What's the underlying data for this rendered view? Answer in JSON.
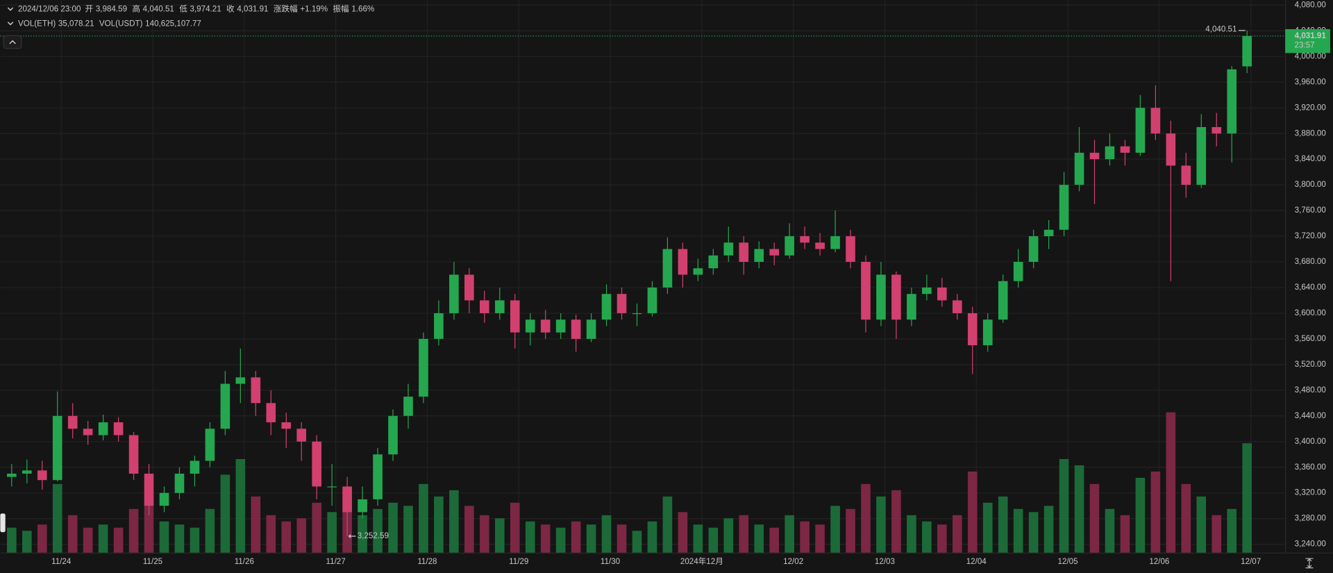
{
  "chart_data": {
    "type": "candlestick",
    "legend": {
      "time": "2024/12/06 23:00",
      "fields": [
        {
          "label": "开",
          "value": "3,984.59"
        },
        {
          "label": "高",
          "value": "4,040.51"
        },
        {
          "label": "低",
          "value": "3,974.21"
        },
        {
          "label": "收",
          "value": "4,031.91"
        },
        {
          "label": "涨跌幅",
          "value": "+1.19%"
        },
        {
          "label": "振幅",
          "value": "1.66%"
        }
      ],
      "volume": [
        {
          "label": "VOL(ETH)",
          "value": "35,078.21"
        },
        {
          "label": "VOL(USDT)",
          "value": "140,625,107.77"
        }
      ]
    },
    "up_color": "#25a750",
    "down_color": "#d2406f",
    "up_volume_color": "#1c6a38",
    "down_volume_color": "#7c2744",
    "grid": true,
    "last_price": {
      "value": 4031.91,
      "label": "4,031.91"
    },
    "countdown": "23:57",
    "annotations": {
      "high": "4,040.51",
      "low": "3,252.59"
    },
    "xlim": [
      "2024/11/23 08:00",
      "2024/12/07 09:00"
    ],
    "ylim": [
      3227,
      4088
    ],
    "xticks": [
      {
        "value": "2024/11/24 00:00",
        "label": "11/24"
      },
      {
        "value": "2024/11/25 00:00",
        "label": "11/25"
      },
      {
        "value": "2024/11/26 00:00",
        "label": "11/26"
      },
      {
        "value": "2024/11/27 00:00",
        "label": "11/27"
      },
      {
        "value": "2024/11/28 00:00",
        "label": "11/28"
      },
      {
        "value": "2024/11/29 00:00",
        "label": "11/29"
      },
      {
        "value": "2024/11/30 00:00",
        "label": "11/30"
      },
      {
        "value": "2024/12/01 00:00",
        "label": "2024年12月"
      },
      {
        "value": "2024/12/02 00:00",
        "label": "12/02"
      },
      {
        "value": "2024/12/03 00:00",
        "label": "12/03"
      },
      {
        "value": "2024/12/04 00:00",
        "label": "12/04"
      },
      {
        "value": "2024/12/05 00:00",
        "label": "12/05"
      },
      {
        "value": "2024/12/06 00:00",
        "label": "12/06"
      },
      {
        "value": "2024/12/07 00:00",
        "label": "12/07"
      }
    ],
    "yticks": [
      {
        "value": 3240,
        "label": "3,240.00"
      },
      {
        "value": 3280,
        "label": "3,280.00"
      },
      {
        "value": 3320,
        "label": "3,320.00"
      },
      {
        "value": 3360,
        "label": "3,360.00"
      },
      {
        "value": 3400,
        "label": "3,400.00"
      },
      {
        "value": 3440,
        "label": "3,440.00"
      },
      {
        "value": 3480,
        "label": "3,480.00"
      },
      {
        "value": 3520,
        "label": "3,520.00"
      },
      {
        "value": 3560,
        "label": "3,560.00"
      },
      {
        "value": 3600,
        "label": "3,600.00"
      },
      {
        "value": 3640,
        "label": "3,640.00"
      },
      {
        "value": 3680,
        "label": "3,680.00"
      },
      {
        "value": 3720,
        "label": "3,720.00"
      },
      {
        "value": 3760,
        "label": "3,760.00"
      },
      {
        "value": 3800,
        "label": "3,800.00"
      },
      {
        "value": 3840,
        "label": "3,840.00"
      },
      {
        "value": 3880,
        "label": "3,880.00"
      },
      {
        "value": 3920,
        "label": "3,920.00"
      },
      {
        "value": 3960,
        "label": "3,960.00"
      },
      {
        "value": 4000,
        "label": "4,000.00"
      },
      {
        "value": 4040,
        "label": "4,040.00"
      },
      {
        "value": 4080,
        "label": "4,080.00"
      }
    ],
    "x": [
      "2024/11/23 11:00",
      "2024/11/23 15:00",
      "2024/11/23 19:00",
      "2024/11/23 23:00",
      "2024/11/24 03:00",
      "2024/11/24 07:00",
      "2024/11/24 11:00",
      "2024/11/24 15:00",
      "2024/11/24 19:00",
      "2024/11/24 23:00",
      "2024/11/25 03:00",
      "2024/11/25 07:00",
      "2024/11/25 11:00",
      "2024/11/25 15:00",
      "2024/11/25 19:00",
      "2024/11/25 23:00",
      "2024/11/26 03:00",
      "2024/11/26 07:00",
      "2024/11/26 11:00",
      "2024/11/26 15:00",
      "2024/11/26 19:00",
      "2024/11/26 23:00",
      "2024/11/27 03:00",
      "2024/11/27 07:00",
      "2024/11/27 11:00",
      "2024/11/27 15:00",
      "2024/11/27 19:00",
      "2024/11/27 23:00",
      "2024/11/28 03:00",
      "2024/11/28 07:00",
      "2024/11/28 11:00",
      "2024/11/28 15:00",
      "2024/11/28 19:00",
      "2024/11/28 23:00",
      "2024/11/29 03:00",
      "2024/11/29 07:00",
      "2024/11/29 11:00",
      "2024/11/29 15:00",
      "2024/11/29 19:00",
      "2024/11/29 23:00",
      "2024/11/30 03:00",
      "2024/11/30 07:00",
      "2024/11/30 11:00",
      "2024/11/30 15:00",
      "2024/11/30 19:00",
      "2024/11/30 23:00",
      "2024/12/01 03:00",
      "2024/12/01 07:00",
      "2024/12/01 11:00",
      "2024/12/01 15:00",
      "2024/12/01 19:00",
      "2024/12/01 23:00",
      "2024/12/02 03:00",
      "2024/12/02 07:00",
      "2024/12/02 11:00",
      "2024/12/02 15:00",
      "2024/12/02 19:00",
      "2024/12/02 23:00",
      "2024/12/03 03:00",
      "2024/12/03 07:00",
      "2024/12/03 11:00",
      "2024/12/03 15:00",
      "2024/12/03 19:00",
      "2024/12/03 23:00",
      "2024/12/04 03:00",
      "2024/12/04 07:00",
      "2024/12/04 11:00",
      "2024/12/04 15:00",
      "2024/12/04 19:00",
      "2024/12/04 23:00",
      "2024/12/05 03:00",
      "2024/12/05 07:00",
      "2024/12/05 11:00",
      "2024/12/05 15:00",
      "2024/12/05 19:00",
      "2024/12/05 23:00",
      "2024/12/06 03:00",
      "2024/12/06 07:00",
      "2024/12/06 11:00",
      "2024/12/06 15:00",
      "2024/12/06 19:00",
      "2024/12/06 23:00"
    ],
    "open": [
      3345,
      3350,
      3355,
      3340,
      3440,
      3420,
      3410,
      3430,
      3410,
      3350,
      3300,
      3320,
      3350,
      3370,
      3420,
      3490,
      3500,
      3460,
      3430,
      3420,
      3400,
      3330,
      3330,
      3290,
      3310,
      3380,
      3440,
      3470,
      3560,
      3600,
      3660,
      3620,
      3600,
      3620,
      3570,
      3590,
      3570,
      3590,
      3560,
      3590,
      3630,
      3600,
      3600,
      3640,
      3700,
      3660,
      3670,
      3690,
      3710,
      3680,
      3700,
      3690,
      3720,
      3710,
      3700,
      3720,
      3680,
      3590,
      3660,
      3590,
      3630,
      3640,
      3620,
      3600,
      3550,
      3590,
      3650,
      3680,
      3720,
      3730,
      3800,
      3850,
      3840,
      3860,
      3850,
      3920,
      3880,
      3830,
      3800,
      3890,
      3880,
      3984.59
    ],
    "high": [
      3365,
      3372,
      3370,
      3478,
      3460,
      3432,
      3442,
      3438,
      3415,
      3365,
      3330,
      3360,
      3378,
      3430,
      3510,
      3545,
      3510,
      3480,
      3445,
      3430,
      3410,
      3365,
      3345,
      3330,
      3390,
      3450,
      3490,
      3570,
      3620,
      3680,
      3670,
      3635,
      3640,
      3630,
      3600,
      3605,
      3600,
      3598,
      3600,
      3645,
      3640,
      3615,
      3650,
      3718,
      3710,
      3685,
      3700,
      3735,
      3720,
      3712,
      3710,
      3740,
      3735,
      3725,
      3760,
      3730,
      3690,
      3680,
      3665,
      3640,
      3660,
      3655,
      3630,
      3610,
      3600,
      3660,
      3700,
      3730,
      3745,
      3820,
      3890,
      3870,
      3880,
      3870,
      3940,
      3955,
      3900,
      3850,
      3910,
      3912,
      3985,
      4040.51
    ],
    "low": [
      3330,
      3335,
      3325,
      3338,
      3405,
      3395,
      3402,
      3400,
      3340,
      3285,
      3290,
      3310,
      3330,
      3360,
      3410,
      3460,
      3440,
      3410,
      3390,
      3370,
      3310,
      3300,
      3252.59,
      3280,
      3300,
      3370,
      3420,
      3460,
      3550,
      3590,
      3600,
      3585,
      3590,
      3545,
      3550,
      3560,
      3560,
      3540,
      3555,
      3580,
      3590,
      3580,
      3595,
      3630,
      3640,
      3650,
      3660,
      3680,
      3660,
      3670,
      3675,
      3685,
      3700,
      3690,
      3695,
      3670,
      3570,
      3580,
      3560,
      3580,
      3620,
      3610,
      3590,
      3505,
      3540,
      3585,
      3640,
      3670,
      3700,
      3720,
      3790,
      3770,
      3830,
      3830,
      3845,
      3870,
      3650,
      3780,
      3795,
      3860,
      3835,
      3974.21
    ],
    "close": [
      3350,
      3355,
      3340,
      3440,
      3420,
      3410,
      3430,
      3410,
      3350,
      3300,
      3320,
      3350,
      3370,
      3420,
      3490,
      3500,
      3460,
      3430,
      3420,
      3400,
      3330,
      3330,
      3290,
      3310,
      3380,
      3440,
      3470,
      3560,
      3600,
      3660,
      3620,
      3600,
      3620,
      3570,
      3590,
      3570,
      3590,
      3560,
      3590,
      3630,
      3600,
      3600,
      3640,
      3700,
      3660,
      3670,
      3690,
      3710,
      3680,
      3700,
      3690,
      3720,
      3710,
      3700,
      3720,
      3680,
      3590,
      3660,
      3590,
      3630,
      3640,
      3620,
      3600,
      3550,
      3590,
      3650,
      3680,
      3720,
      3730,
      3800,
      3850,
      3840,
      3860,
      3850,
      3920,
      3880,
      3830,
      3800,
      3890,
      3880,
      3980,
      4031.91
    ],
    "volume": [
      8000,
      7000,
      9000,
      22000,
      12000,
      8000,
      9000,
      8000,
      14000,
      16000,
      10000,
      9000,
      8000,
      14000,
      25000,
      30000,
      18000,
      12000,
      10000,
      11000,
      16000,
      13000,
      20000,
      12000,
      14000,
      16000,
      15000,
      22000,
      18000,
      20000,
      15000,
      12000,
      11000,
      16000,
      10000,
      9000,
      8000,
      10000,
      9000,
      12000,
      9000,
      7000,
      10000,
      18000,
      13000,
      9000,
      8000,
      11000,
      12000,
      9000,
      8000,
      12000,
      10000,
      9000,
      15000,
      14000,
      22000,
      18000,
      20000,
      12000,
      10000,
      9000,
      12000,
      26000,
      16000,
      18000,
      14000,
      13000,
      15000,
      30000,
      28000,
      22000,
      14000,
      12000,
      24000,
      26000,
      45000,
      22000,
      18000,
      12000,
      14000,
      35078.21
    ]
  }
}
